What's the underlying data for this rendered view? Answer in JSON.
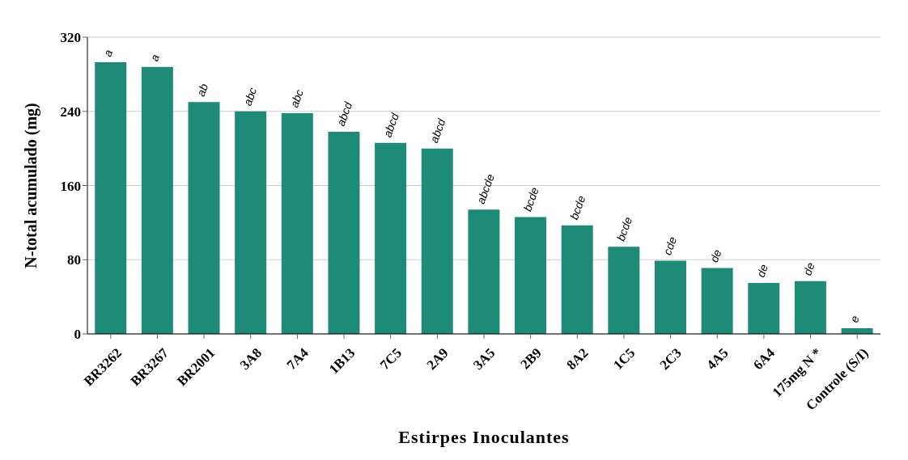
{
  "chart_data": {
    "type": "bar",
    "xlabel": "Estirpes Inoculantes",
    "ylabel": "N-total acumulado (mg)",
    "categories": [
      "BR3262",
      "BR3267",
      "BR2001",
      "3A8",
      "7A4",
      "1B13",
      "7C5",
      "2A9",
      "3A5",
      "2B9",
      "8A2",
      "1C5",
      "2C3",
      "4A5",
      "6A4",
      "175mg N *",
      "Controle (S/I)"
    ],
    "values": [
      293,
      288,
      250,
      240,
      238,
      218,
      206,
      200,
      134,
      126,
      117,
      94,
      79,
      71,
      55,
      57,
      6
    ],
    "color": "#1e8a78",
    "ylim": [
      0,
      320
    ],
    "yticks": [
      0,
      80,
      160,
      240,
      320
    ],
    "grid": "y",
    "annotations": [
      {
        "text": "a",
        "x": "BR3262",
        "y": 293
      },
      {
        "text": "a",
        "x": "BR3267",
        "y": 288
      },
      {
        "text": "ab",
        "x": "BR2001",
        "y": 250
      },
      {
        "text": "abc",
        "x": "3A8",
        "y": 240
      },
      {
        "text": "abc",
        "x": "7A4",
        "y": 238
      },
      {
        "text": "abcd",
        "x": "1B13",
        "y": 218
      },
      {
        "text": "abcd",
        "x": "7C5",
        "y": 206
      },
      {
        "text": "abcd",
        "x": "2A9",
        "y": 200
      },
      {
        "text": "abcde",
        "x": "3A5",
        "y": 134
      },
      {
        "text": "bcde",
        "x": "2B9",
        "y": 126
      },
      {
        "text": "bcde",
        "x": "8A2",
        "y": 117
      },
      {
        "text": "bcde",
        "x": "1C5",
        "y": 94
      },
      {
        "text": "cde",
        "x": "2C3",
        "y": 79
      },
      {
        "text": "de",
        "x": "4A5",
        "y": 71
      },
      {
        "text": "de",
        "x": "6A4",
        "y": 55
      },
      {
        "text": "de",
        "x": "175mg N *",
        "y": 57
      },
      {
        "text": "e",
        "x": "Controle (S/I)",
        "y": 6
      }
    ]
  }
}
